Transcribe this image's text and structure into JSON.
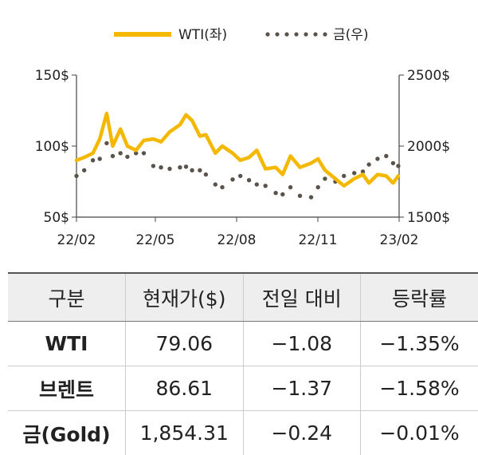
{
  "chart_data": {
    "type": "line",
    "legend": {
      "placement": "top-center"
    },
    "x_ticks": [
      "22/02",
      "22/05",
      "22/08",
      "22/11",
      "23/02"
    ],
    "y_left_ticks": [
      "150$",
      "100$",
      "50$"
    ],
    "y_right_ticks": [
      "2500$",
      "2000$",
      "1500$"
    ],
    "y_left_range": [
      50,
      150
    ],
    "y_right_range": [
      1500,
      2500
    ],
    "grid": false,
    "series": [
      {
        "name": "WTI(좌)",
        "axis": "left",
        "color": "#F5B800",
        "style": "solid",
        "points": [
          [
            "2022-02-01",
            90
          ],
          [
            "2022-02-10",
            92
          ],
          [
            "2022-02-20",
            95
          ],
          [
            "2022-02-28",
            105
          ],
          [
            "2022-03-08",
            123
          ],
          [
            "2022-03-15",
            100
          ],
          [
            "2022-03-24",
            112
          ],
          [
            "2022-04-01",
            100
          ],
          [
            "2022-04-11",
            97
          ],
          [
            "2022-04-20",
            104
          ],
          [
            "2022-05-01",
            105
          ],
          [
            "2022-05-10",
            103
          ],
          [
            "2022-05-20",
            110
          ],
          [
            "2022-06-01",
            115
          ],
          [
            "2022-06-08",
            122
          ],
          [
            "2022-06-15",
            118
          ],
          [
            "2022-06-24",
            107
          ],
          [
            "2022-07-01",
            108
          ],
          [
            "2022-07-12",
            95
          ],
          [
            "2022-07-20",
            100
          ],
          [
            "2022-08-01",
            95
          ],
          [
            "2022-08-10",
            90
          ],
          [
            "2022-08-20",
            92
          ],
          [
            "2022-08-29",
            97
          ],
          [
            "2022-09-08",
            84
          ],
          [
            "2022-09-20",
            85
          ],
          [
            "2022-09-28",
            80
          ],
          [
            "2022-10-07",
            93
          ],
          [
            "2022-10-18",
            85
          ],
          [
            "2022-10-31",
            88
          ],
          [
            "2022-11-08",
            91
          ],
          [
            "2022-11-16",
            83
          ],
          [
            "2022-11-28",
            77
          ],
          [
            "2022-12-08",
            72
          ],
          [
            "2022-12-20",
            77
          ],
          [
            "2022-12-30",
            80
          ],
          [
            "2023-01-06",
            74
          ],
          [
            "2023-01-16",
            80
          ],
          [
            "2023-01-26",
            79
          ],
          [
            "2023-02-03",
            74
          ],
          [
            "2023-02-09",
            79
          ]
        ]
      },
      {
        "name": "금(우)",
        "axis": "right",
        "color": "#5A534B",
        "style": "dotted",
        "points": [
          [
            "2022-02-01",
            1790
          ],
          [
            "2022-02-10",
            1830
          ],
          [
            "2022-02-20",
            1900
          ],
          [
            "2022-02-28",
            1910
          ],
          [
            "2022-03-08",
            2020
          ],
          [
            "2022-03-15",
            1930
          ],
          [
            "2022-03-24",
            1950
          ],
          [
            "2022-04-01",
            1925
          ],
          [
            "2022-04-11",
            1950
          ],
          [
            "2022-04-20",
            1950
          ],
          [
            "2022-05-01",
            1860
          ],
          [
            "2022-05-10",
            1850
          ],
          [
            "2022-05-20",
            1840
          ],
          [
            "2022-06-01",
            1850
          ],
          [
            "2022-06-08",
            1855
          ],
          [
            "2022-06-15",
            1830
          ],
          [
            "2022-06-24",
            1830
          ],
          [
            "2022-07-01",
            1800
          ],
          [
            "2022-07-12",
            1730
          ],
          [
            "2022-07-20",
            1710
          ],
          [
            "2022-08-01",
            1765
          ],
          [
            "2022-08-10",
            1790
          ],
          [
            "2022-08-20",
            1760
          ],
          [
            "2022-08-29",
            1730
          ],
          [
            "2022-09-08",
            1720
          ],
          [
            "2022-09-20",
            1670
          ],
          [
            "2022-09-28",
            1660
          ],
          [
            "2022-10-07",
            1710
          ],
          [
            "2022-10-18",
            1650
          ],
          [
            "2022-10-31",
            1640
          ],
          [
            "2022-11-08",
            1710
          ],
          [
            "2022-11-16",
            1770
          ],
          [
            "2022-11-28",
            1750
          ],
          [
            "2022-12-08",
            1790
          ],
          [
            "2022-12-20",
            1810
          ],
          [
            "2022-12-30",
            1820
          ],
          [
            "2023-01-06",
            1870
          ],
          [
            "2023-01-16",
            1910
          ],
          [
            "2023-01-26",
            1930
          ],
          [
            "2023-02-03",
            1880
          ],
          [
            "2023-02-09",
            1860
          ]
        ]
      }
    ]
  },
  "table": {
    "headers": [
      "구분",
      "현재가($)",
      "전일 대비",
      "등락률"
    ],
    "rows": [
      [
        "WTI",
        "79.06",
        "−1.08",
        "−1.35%"
      ],
      [
        "브렌트",
        "86.61",
        "−1.37",
        "−1.58%"
      ],
      [
        "금(Gold)",
        "1,854.31",
        "−0.24",
        "−0.01%"
      ]
    ]
  }
}
